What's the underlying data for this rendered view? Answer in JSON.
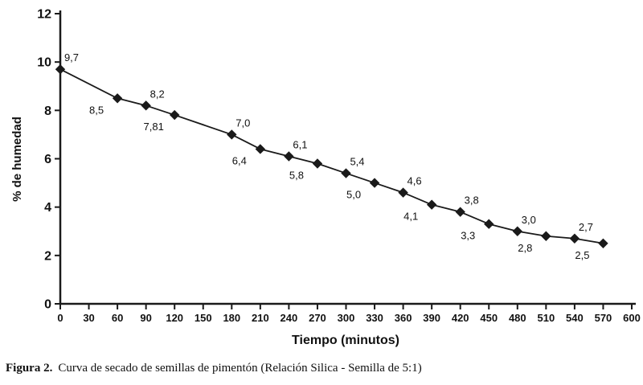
{
  "chart_data": {
    "type": "line",
    "title": "",
    "xlabel": "Tiempo (minutos)",
    "ylabel": "% de humedad",
    "xlim": [
      0,
      600
    ],
    "ylim": [
      0,
      12
    ],
    "x_ticks": [
      0,
      30,
      60,
      90,
      120,
      150,
      180,
      210,
      240,
      270,
      300,
      330,
      360,
      390,
      420,
      450,
      480,
      510,
      540,
      570,
      600
    ],
    "y_ticks": [
      0,
      2,
      4,
      6,
      8,
      10,
      12
    ],
    "grid": false,
    "legend": "none",
    "marker": "diamond",
    "line_color": "#1a1a1a",
    "marker_color": "#1a1a1a",
    "points": [
      {
        "x": 0,
        "y": 9.7,
        "label": "9,7",
        "label_pos": "above"
      },
      {
        "x": 60,
        "y": 8.5,
        "label": "8,5",
        "label_pos": "below"
      },
      {
        "x": 90,
        "y": 8.2,
        "label": "8,2",
        "label_pos": "above"
      },
      {
        "x": 120,
        "y": 7.81,
        "label": "7,81",
        "label_pos": "below"
      },
      {
        "x": 180,
        "y": 7.0,
        "label": "7,0",
        "label_pos": "above"
      },
      {
        "x": 210,
        "y": 6.4,
        "label": "6,4",
        "label_pos": "below"
      },
      {
        "x": 240,
        "y": 6.1,
        "label": "6,1",
        "label_pos": "above"
      },
      {
        "x": 270,
        "y": 5.8,
        "label": "5,8",
        "label_pos": "below"
      },
      {
        "x": 300,
        "y": 5.4,
        "label": "5,4",
        "label_pos": "above"
      },
      {
        "x": 330,
        "y": 5.0,
        "label": "5,0",
        "label_pos": "below"
      },
      {
        "x": 360,
        "y": 4.6,
        "label": "4,6",
        "label_pos": "above"
      },
      {
        "x": 390,
        "y": 4.1,
        "label": "4,1",
        "label_pos": "below"
      },
      {
        "x": 420,
        "y": 3.8,
        "label": "3,8",
        "label_pos": "above"
      },
      {
        "x": 450,
        "y": 3.3,
        "label": "3,3",
        "label_pos": "below"
      },
      {
        "x": 480,
        "y": 3.0,
        "label": "3,0",
        "label_pos": "above"
      },
      {
        "x": 510,
        "y": 2.8,
        "label": "2,8",
        "label_pos": "below"
      },
      {
        "x": 540,
        "y": 2.7,
        "label": "2,7",
        "label_pos": "above"
      },
      {
        "x": 570,
        "y": 2.5,
        "label": "2,5",
        "label_pos": "below"
      }
    ]
  },
  "caption": {
    "label": "Figura 2.",
    "text": "Curva  de secado de semillas de pimentón (Relación Silica - Semilla de 5:1)"
  }
}
